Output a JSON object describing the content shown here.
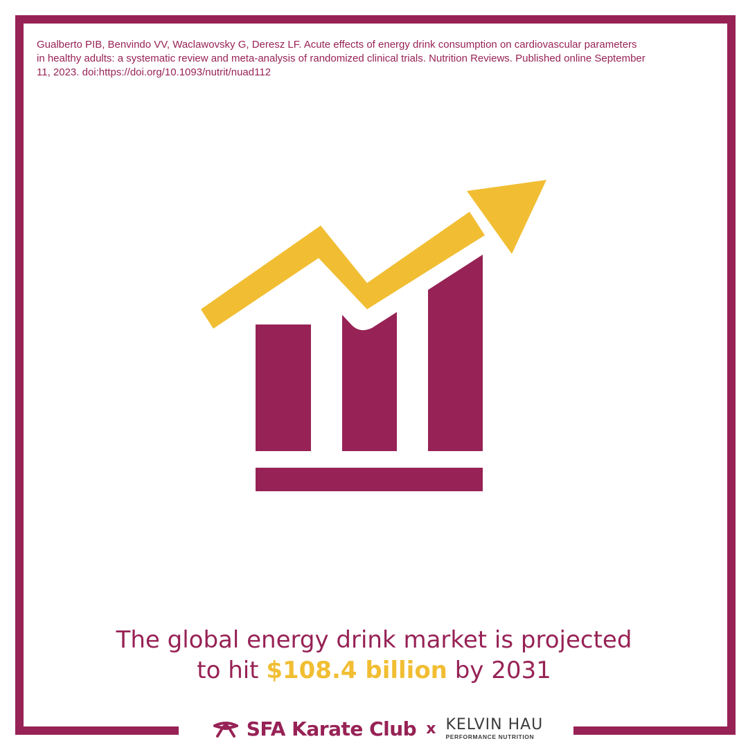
{
  "citation": "Gualberto PIB, Benvindo VV, Waclawovsky G, Deresz LF. Acute effects of energy drink consumption on cardiovascular parameters in healthy adults: a systematic review and meta-analysis of randomized clinical trials. Nutrition Reviews. Published online September 11, 2023. doi:https://doi.org/10.1093/nutrit/nuad112",
  "headline": {
    "line1": "The global energy drink market is projected",
    "line2_prefix": "to hit ",
    "line2_highlight": "$108.4 billion",
    "line2_suffix": " by 2031"
  },
  "footer": {
    "club_name": "SFA Karate Club",
    "separator": "x",
    "partner_name": "KELVIN HAU",
    "partner_tagline": "PERFORMANCE NUTRITION"
  },
  "icons": {
    "main": "growth-chart-icon",
    "club_logo": "karate-belt-icon"
  },
  "colors": {
    "brand": "#972255",
    "accent": "#f1be33",
    "text_dark": "#3c3c3c",
    "background": "#ffffff"
  }
}
